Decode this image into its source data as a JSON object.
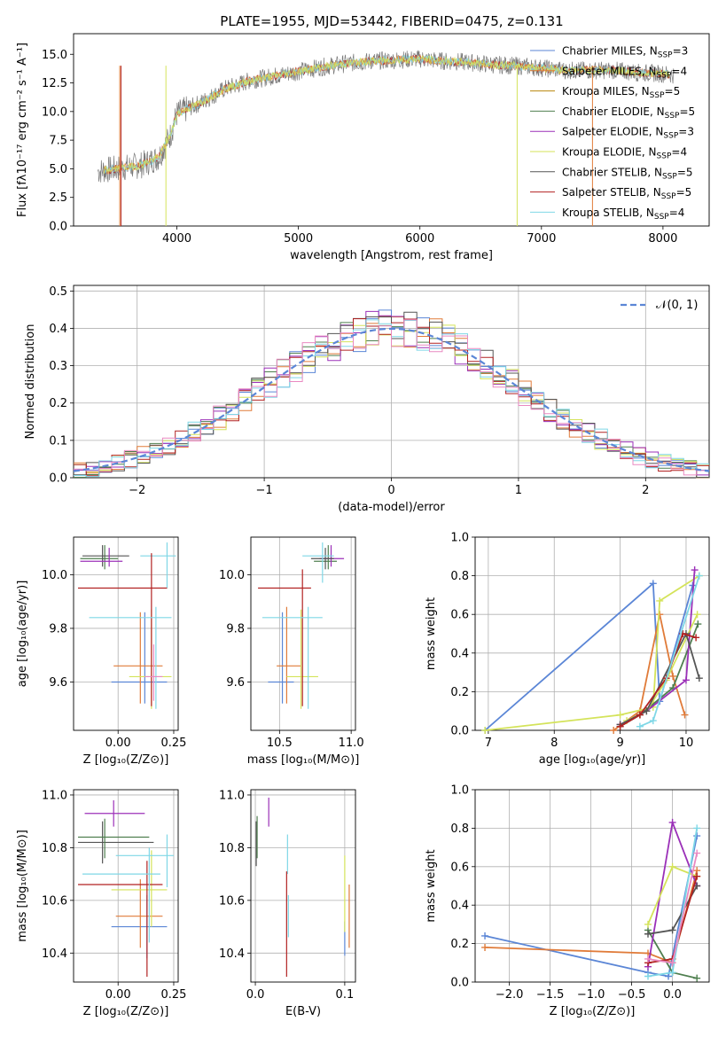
{
  "figure": {
    "title": "PLATE=1955, MJD=53442, FIBERID=0475, z=0.131"
  },
  "legend_entries": [
    {
      "model": "Chabrier MILES",
      "n": "3",
      "color": "#5b86d6"
    },
    {
      "model": "Salpeter MILES",
      "n": "4",
      "color": "#e07b39"
    },
    {
      "model": "Kroupa MILES",
      "n": "5",
      "color": "#b8860b"
    },
    {
      "model": "Chabrier ELODIE",
      "n": "5",
      "color": "#4f7f4f"
    },
    {
      "model": "Salpeter ELODIE",
      "n": "3",
      "color": "#9b30b8"
    },
    {
      "model": "Kroupa ELODIE",
      "n": "4",
      "color": "#d4e35a"
    },
    {
      "model": "Chabrier STELIB",
      "n": "5",
      "color": "#555555"
    },
    {
      "model": "Salpeter STELIB",
      "n": "5",
      "color": "#b22222"
    },
    {
      "model": "Kroupa STELIB",
      "n": "4",
      "color": "#7fd7e6"
    }
  ],
  "chart_data": [
    {
      "id": "spectrum",
      "type": "line",
      "xlabel": "wavelength [Angstrom, rest frame]",
      "ylabel": "Flux [fλ10⁻¹⁷ erg cm⁻² s⁻¹ A⁻¹]",
      "xlim": [
        3150,
        8380
      ],
      "ylim": [
        0,
        16.8
      ],
      "xticks": [
        "4000",
        "5000",
        "6000",
        "7000",
        "8000"
      ],
      "yticks": [
        "0.0",
        "2.5",
        "5.0",
        "7.5",
        "10.0",
        "12.5",
        "15.0"
      ],
      "x": [
        3350,
        3500,
        3700,
        3850,
        3950,
        4000,
        4200,
        4400,
        4600,
        4800,
        5000,
        5200,
        5400,
        5600,
        5800,
        6000,
        6200,
        6400,
        6600,
        6800,
        7000,
        7200,
        7400,
        7600,
        7800,
        8000,
        8100
      ],
      "y": [
        4.8,
        5.0,
        5.3,
        6.0,
        8.0,
        9.8,
        10.8,
        12.0,
        12.7,
        13.1,
        13.5,
        13.9,
        14.2,
        14.4,
        14.5,
        14.6,
        14.4,
        14.3,
        14.1,
        14.0,
        13.8,
        13.6,
        13.6,
        13.6,
        13.4,
        13.3,
        13.2
      ]
    },
    {
      "id": "residuals",
      "type": "line",
      "xlabel": "(data-model)/error",
      "ylabel": "Normed distribution",
      "xlim": [
        -2.5,
        2.5
      ],
      "ylim": [
        0,
        0.515
      ],
      "xticks": [
        "−2",
        "−1",
        "0",
        "1",
        "2"
      ],
      "yticks": [
        "0.0",
        "0.1",
        "0.2",
        "0.3",
        "0.4",
        "0.5"
      ],
      "legend": "𝒩(0, 1)",
      "series": [
        {
          "name": "𝒩(0, 1)",
          "mu": 0,
          "sigma": 1
        }
      ]
    },
    {
      "id": "age-vs-Z",
      "type": "scatter",
      "xlabel": "Z [log₁₀(Z/Z⊙)]",
      "ylabel": "age  [log₁₀(age/yr)]",
      "xlim": [
        -0.2,
        0.27
      ],
      "ylim": [
        9.42,
        10.14
      ],
      "xticks": [
        "0.00",
        "0.25"
      ],
      "yticks": [
        "9.6",
        "9.8",
        "10.0"
      ],
      "points": [
        {
          "x": 0.12,
          "xlo": -0.03,
          "xhi": 0.22,
          "y": 9.6,
          "ylo": 9.52,
          "yhi": 9.86,
          "c": 0
        },
        {
          "x": 0.1,
          "xlo": -0.02,
          "xhi": 0.2,
          "y": 9.66,
          "ylo": 9.52,
          "yhi": 9.86,
          "c": 1
        },
        {
          "x": 0.15,
          "xlo": 0.05,
          "xhi": 0.24,
          "y": 9.62,
          "ylo": 9.5,
          "yhi": 9.87,
          "c": 5
        },
        {
          "x": -0.06,
          "xlo": -0.17,
          "xhi": 0.0,
          "y": 10.06,
          "ylo": 10.02,
          "yhi": 10.11,
          "c": 3
        },
        {
          "x": -0.07,
          "xlo": -0.16,
          "xhi": 0.05,
          "y": 10.07,
          "ylo": 10.03,
          "yhi": 10.11,
          "c": 6
        },
        {
          "x": -0.04,
          "xlo": -0.17,
          "xhi": 0.02,
          "y": 10.05,
          "ylo": 10.03,
          "yhi": 10.1,
          "c": 4
        },
        {
          "x": 0.22,
          "xlo": 0.1,
          "xhi": 0.26,
          "y": 10.07,
          "ylo": 9.95,
          "yhi": 10.12,
          "c": 8
        },
        {
          "x": 0.15,
          "xlo": -0.18,
          "xhi": 0.22,
          "y": 9.95,
          "ylo": 9.51,
          "yhi": 10.08,
          "c": 7
        },
        {
          "x": 0.17,
          "xlo": -0.13,
          "xhi": 0.24,
          "y": 9.84,
          "ylo": 9.5,
          "yhi": 9.88,
          "c": 8
        },
        {
          "x": 0.16,
          "xlo": 0.12,
          "xhi": 0.2,
          "y": 9.62,
          "ylo": 9.53,
          "yhi": 9.74,
          "c": 9
        }
      ]
    },
    {
      "id": "age-vs-mass",
      "type": "scatter",
      "xlabel": "mass [log₁₀(M/M⊙)]",
      "ylabel": "",
      "xlim": [
        10.3,
        11.03
      ],
      "ylim": [
        9.42,
        10.14
      ],
      "xticks": [
        "10.5",
        "11.0"
      ],
      "yticks": [
        "9.6",
        "9.8",
        "10.0"
      ],
      "points": [
        {
          "x": 10.52,
          "xlo": 10.42,
          "xhi": 10.6,
          "y": 9.6,
          "ylo": 9.52,
          "yhi": 9.86,
          "c": 0
        },
        {
          "x": 10.55,
          "xlo": 10.48,
          "xhi": 10.65,
          "y": 9.66,
          "ylo": 9.52,
          "yhi": 9.88,
          "c": 1
        },
        {
          "x": 10.65,
          "xlo": 10.55,
          "xhi": 10.77,
          "y": 9.62,
          "ylo": 9.5,
          "yhi": 9.87,
          "c": 5
        },
        {
          "x": 10.84,
          "xlo": 10.74,
          "xhi": 10.9,
          "y": 10.05,
          "ylo": 10.02,
          "yhi": 10.11,
          "c": 3
        },
        {
          "x": 10.86,
          "xlo": 10.78,
          "xhi": 10.95,
          "y": 10.06,
          "ylo": 10.03,
          "yhi": 10.11,
          "c": 4
        },
        {
          "x": 10.82,
          "xlo": 10.72,
          "xhi": 10.88,
          "y": 10.06,
          "ylo": 10.02,
          "yhi": 10.1,
          "c": 6
        },
        {
          "x": 10.8,
          "xlo": 10.66,
          "xhi": 10.88,
          "y": 10.07,
          "ylo": 9.97,
          "yhi": 10.12,
          "c": 8
        },
        {
          "x": 10.66,
          "xlo": 10.35,
          "xhi": 10.72,
          "y": 9.95,
          "ylo": 9.51,
          "yhi": 10.02,
          "c": 7
        },
        {
          "x": 10.7,
          "xlo": 10.38,
          "xhi": 10.8,
          "y": 9.84,
          "ylo": 9.5,
          "yhi": 9.88,
          "c": 8
        }
      ]
    },
    {
      "id": "massweight-vs-age",
      "type": "line",
      "xlabel": "age  [log₁₀(age/yr)]",
      "ylabel": "mass weight",
      "xlim": [
        6.8,
        10.35
      ],
      "ylim": [
        0,
        1.0
      ],
      "xticks": [
        "7",
        "8",
        "9",
        "10"
      ],
      "yticks": [
        "0.0",
        "0.2",
        "0.4",
        "0.6",
        "0.8",
        "1.0"
      ],
      "series": [
        {
          "c": 0,
          "x": [
            6.95,
            9.5,
            9.6,
            10.1
          ],
          "y": [
            0.0,
            0.76,
            0.15,
            0.75
          ]
        },
        {
          "c": 1,
          "x": [
            8.9,
            9.3,
            9.6,
            9.8,
            9.98
          ],
          "y": [
            0.0,
            0.1,
            0.6,
            0.28,
            0.08
          ]
        },
        {
          "c": 5,
          "x": [
            6.95,
            9.0,
            9.5,
            9.6,
            10.2
          ],
          "y": [
            0.0,
            0.08,
            0.12,
            0.67,
            0.8
          ]
        },
        {
          "c": 3,
          "x": [
            9.0,
            9.3,
            9.8,
            10.18
          ],
          "y": [
            0.02,
            0.08,
            0.22,
            0.55
          ]
        },
        {
          "c": 4,
          "x": [
            9.0,
            9.4,
            10.0,
            10.13
          ],
          "y": [
            0.03,
            0.1,
            0.26,
            0.83
          ]
        },
        {
          "c": 5,
          "x": [
            9.1,
            9.4,
            9.7,
            10.17
          ],
          "y": [
            0.05,
            0.1,
            0.26,
            0.6
          ]
        },
        {
          "c": 6,
          "x": [
            9.0,
            9.4,
            10.0,
            10.2
          ],
          "y": [
            0.03,
            0.1,
            0.5,
            0.27
          ]
        },
        {
          "c": 7,
          "x": [
            9.0,
            9.3,
            9.7,
            9.95,
            10.15
          ],
          "y": [
            0.02,
            0.08,
            0.27,
            0.5,
            0.48
          ]
        },
        {
          "c": 8,
          "x": [
            9.3,
            9.5,
            10.2
          ],
          "y": [
            0.02,
            0.05,
            0.8
          ]
        }
      ]
    },
    {
      "id": "mass-vs-Z",
      "type": "scatter",
      "xlabel": "Z [log₁₀(Z/Z⊙)]",
      "ylabel": "mass [log₁₀(M/M⊙)]",
      "xlim": [
        -0.2,
        0.27
      ],
      "ylim": [
        10.29,
        11.02
      ],
      "xticks": [
        "0.00",
        "0.25"
      ],
      "yticks": [
        "10.4",
        "10.6",
        "10.8",
        "11.0"
      ],
      "points": [
        {
          "x": 0.13,
          "xlo": -0.03,
          "xhi": 0.22,
          "y": 10.5,
          "ylo": 10.38,
          "yhi": 10.62,
          "c": 0
        },
        {
          "x": 0.1,
          "xlo": -0.01,
          "xhi": 0.2,
          "y": 10.54,
          "ylo": 10.42,
          "yhi": 10.68,
          "c": 1
        },
        {
          "x": 0.15,
          "xlo": -0.03,
          "xhi": 0.22,
          "y": 10.64,
          "ylo": 10.5,
          "yhi": 10.79,
          "c": 5
        },
        {
          "x": -0.07,
          "xlo": -0.18,
          "xhi": 0.16,
          "y": 10.82,
          "ylo": 10.74,
          "yhi": 10.9,
          "c": 6
        },
        {
          "x": -0.06,
          "xlo": -0.18,
          "xhi": 0.14,
          "y": 10.84,
          "ylo": 10.76,
          "yhi": 10.91,
          "c": 3
        },
        {
          "x": -0.02,
          "xlo": -0.15,
          "xhi": 0.12,
          "y": 10.93,
          "ylo": 10.88,
          "yhi": 10.98,
          "c": 4
        },
        {
          "x": 0.22,
          "xlo": -0.01,
          "xhi": 0.25,
          "y": 10.77,
          "ylo": 10.65,
          "yhi": 10.85,
          "c": 8
        },
        {
          "x": 0.13,
          "xlo": -0.18,
          "xhi": 0.2,
          "y": 10.66,
          "ylo": 10.31,
          "yhi": 10.75,
          "c": 7
        },
        {
          "x": 0.14,
          "xlo": -0.16,
          "xhi": 0.19,
          "y": 10.7,
          "ylo": 10.44,
          "yhi": 10.8,
          "c": 8
        }
      ]
    },
    {
      "id": "mass-vs-ebv",
      "type": "scatter",
      "xlabel": "E(B-V)",
      "ylabel": "",
      "xlim": [
        -0.005,
        0.112
      ],
      "ylim": [
        10.29,
        11.02
      ],
      "xticks": [
        "0.0",
        "0.1"
      ],
      "yticks": [
        "10.4",
        "10.6",
        "10.8",
        "11.0"
      ],
      "points": [
        {
          "x": 0.1,
          "ylo": 10.39,
          "yhi": 10.52,
          "y": 10.45,
          "c": 0
        },
        {
          "x": 0.105,
          "ylo": 10.42,
          "yhi": 10.66,
          "y": 10.54,
          "c": 1
        },
        {
          "x": 0.1,
          "ylo": 10.48,
          "yhi": 10.77,
          "y": 10.62,
          "c": 5
        },
        {
          "x": 0.001,
          "ylo": 10.73,
          "yhi": 10.9,
          "y": 10.82,
          "c": 6
        },
        {
          "x": 0.002,
          "ylo": 10.76,
          "yhi": 10.92,
          "y": 10.84,
          "c": 3
        },
        {
          "x": 0.015,
          "ylo": 10.88,
          "yhi": 10.99,
          "y": 10.93,
          "c": 4
        },
        {
          "x": 0.036,
          "ylo": 10.7,
          "yhi": 10.85,
          "y": 10.77,
          "c": 8
        },
        {
          "x": 0.035,
          "ylo": 10.31,
          "yhi": 10.71,
          "y": 10.55,
          "c": 7
        },
        {
          "x": 0.037,
          "ylo": 10.46,
          "yhi": 10.62,
          "y": 10.54,
          "c": 8
        }
      ]
    },
    {
      "id": "massweight-vs-Z",
      "type": "line",
      "xlabel": "Z [log₁₀(Z/Z⊙)]",
      "ylabel": "mass weight",
      "xlim": [
        -2.42,
        0.45
      ],
      "ylim": [
        0,
        1.0
      ],
      "xticks": [
        "−2.0",
        "−1.5",
        "−1.0",
        "−0.5",
        "0.0"
      ],
      "yticks": [
        "0.0",
        "0.2",
        "0.4",
        "0.6",
        "0.8",
        "1.0"
      ],
      "series": [
        {
          "c": 0,
          "x": [
            -2.3,
            -0.3,
            -0.05,
            0.3
          ],
          "y": [
            0.24,
            0.05,
            0.03,
            0.76
          ]
        },
        {
          "c": 1,
          "x": [
            -2.3,
            -0.3,
            0.0,
            0.3
          ],
          "y": [
            0.18,
            0.15,
            0.1,
            0.58
          ]
        },
        {
          "c": 3,
          "x": [
            -0.3,
            0.0,
            0.3
          ],
          "y": [
            0.27,
            0.05,
            0.02
          ]
        },
        {
          "c": 4,
          "x": [
            -0.3,
            0.0,
            0.3
          ],
          "y": [
            0.08,
            0.83,
            0.5
          ]
        },
        {
          "c": 5,
          "x": [
            -0.3,
            0.0,
            0.3
          ],
          "y": [
            0.3,
            0.6,
            0.55
          ]
        },
        {
          "c": 6,
          "x": [
            -0.3,
            0.0,
            0.3
          ],
          "y": [
            0.25,
            0.27,
            0.5
          ]
        },
        {
          "c": 7,
          "x": [
            -0.3,
            0.0,
            0.3
          ],
          "y": [
            0.1,
            0.12,
            0.55
          ]
        },
        {
          "c": 8,
          "x": [
            -0.3,
            0.0,
            0.3
          ],
          "y": [
            0.03,
            0.05,
            0.8
          ]
        },
        {
          "c": 9,
          "x": [
            -0.3,
            0.0,
            0.3
          ],
          "y": [
            0.12,
            0.1,
            0.67
          ]
        }
      ]
    }
  ],
  "palette": [
    "#5b86d6",
    "#e07b39",
    "#b8860b",
    "#4f7f4f",
    "#9b30b8",
    "#d4e35a",
    "#555555",
    "#b22222",
    "#7fd7e6",
    "#e989c1"
  ]
}
